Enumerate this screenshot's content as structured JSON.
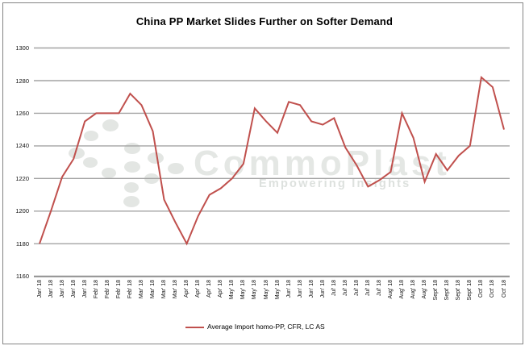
{
  "title": "China PP Market Slides Further on Softer Demand",
  "watermark": {
    "brand": "CommoPlast",
    "tagline": "Empowering Insights"
  },
  "legend": {
    "label": "Average Import homo-PP, CFR, LC AS",
    "swatch_color": "#C0504D"
  },
  "colors": {
    "line": "#C0504D",
    "gridline": "#A3A3A3",
    "axis_line": "#8F8F8F",
    "border": "#848484",
    "watermark": "#E3E6E3",
    "text": "#000000"
  },
  "y_axis": {
    "ticks": [
      1300,
      1280,
      1260,
      1240,
      1220,
      1200,
      1180,
      1160
    ],
    "min": 1160,
    "max": 1300
  },
  "chart_data": {
    "type": "line",
    "title": "China PP Market Slides Further on Softer Demand",
    "xlabel": "",
    "ylabel": "",
    "ylim": [
      1160,
      1300
    ],
    "grid": true,
    "legend_position": "bottom",
    "categories": [
      "Jan' 18",
      "Jan' 18",
      "Jan' 18",
      "Jan' 18",
      "Jan' 18",
      "Feb' 18",
      "Feb' 18",
      "Feb' 18",
      "Feb' 18",
      "Mar' 18",
      "Mar' 18",
      "Mar' 18",
      "Mar' 18",
      "Apr' 18",
      "Apr' 18",
      "Apr' 18",
      "Apr' 18",
      "May' 18",
      "May' 18",
      "May' 18",
      "May' 18",
      "May' 18",
      "Jun' 18",
      "Jun' 18",
      "Jun' 18",
      "Jun' 18",
      "Jul' 18",
      "Jul' 18",
      "Jul' 18",
      "Jul' 18",
      "Jul' 18",
      "Aug' 18",
      "Aug' 18",
      "Aug' 18",
      "Aug' 18",
      "Sept' 18",
      "Sept' 18",
      "Sept' 18",
      "Sept' 18",
      "Oct' 18",
      "Oct' 18",
      "Oct' 18"
    ],
    "series": [
      {
        "name": "Average Import homo-PP, CFR, LC AS",
        "color": "#C0504D",
        "values": [
          1180,
          1200,
          1221,
          1232,
          1255,
          1260,
          1260,
          1260,
          1272,
          1265,
          1249,
          1207,
          1193,
          1180,
          1197,
          1210,
          1214,
          1220,
          1229,
          1263,
          1255,
          1248,
          1267,
          1265,
          1255,
          1253,
          1257,
          1239,
          1228,
          1215,
          1219,
          1224,
          1260,
          1245,
          1218,
          1235,
          1225,
          1234,
          1240,
          1282,
          1276,
          1250
        ]
      }
    ]
  }
}
